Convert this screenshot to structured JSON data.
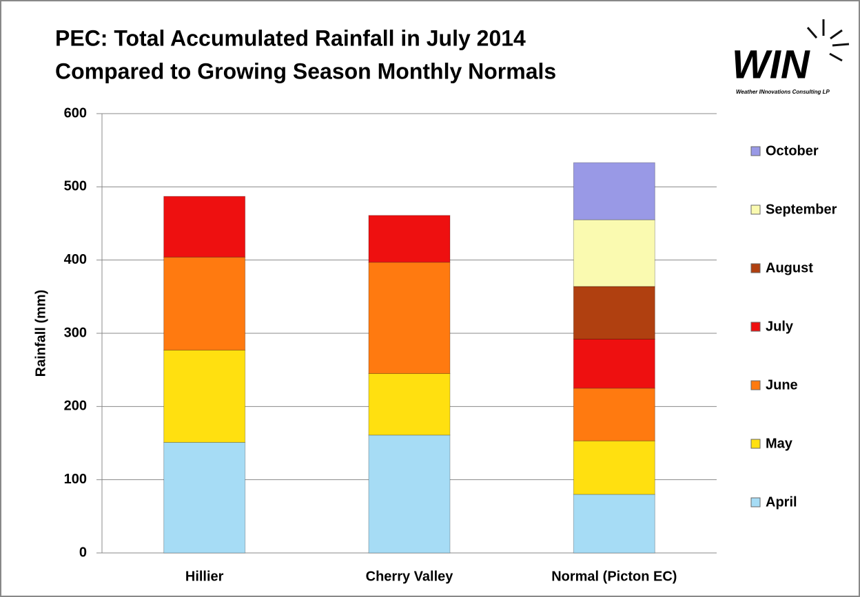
{
  "chart_data": {
    "type": "stacked_bar",
    "title": [
      "PEC: Total Accumulated Rainfall in July 2014",
      "Compared to Growing Season Monthly Normals"
    ],
    "logo": {
      "text": "WIN",
      "subtitle": "Weather INnovations Consulting LP"
    },
    "y_label": "Rainfall (mm)",
    "categories": [
      "Hillier",
      "Cherry Valley",
      "Normal (Picton EC)"
    ],
    "series": [
      {
        "name": "April",
        "color": "#a6dcf5",
        "values": [
          151,
          161,
          80
        ]
      },
      {
        "name": "May",
        "color": "#ffe010",
        "values": [
          126,
          84,
          73
        ]
      },
      {
        "name": "June",
        "color": "#ff7a10",
        "values": [
          127,
          152,
          72
        ]
      },
      {
        "name": "July",
        "color": "#ee1010",
        "values": [
          83,
          64,
          67
        ]
      },
      {
        "name": "August",
        "color": "#b04010",
        "values": [
          0,
          0,
          72
        ]
      },
      {
        "name": "September",
        "color": "#fafab0",
        "values": [
          0,
          0,
          91
        ]
      },
      {
        "name": "October",
        "color": "#9999e6",
        "values": [
          0,
          0,
          78
        ]
      }
    ],
    "ylim": [
      0,
      600
    ],
    "yticks": [
      0,
      100,
      200,
      300,
      400,
      500,
      600
    ],
    "grid": true,
    "legend": "right"
  }
}
